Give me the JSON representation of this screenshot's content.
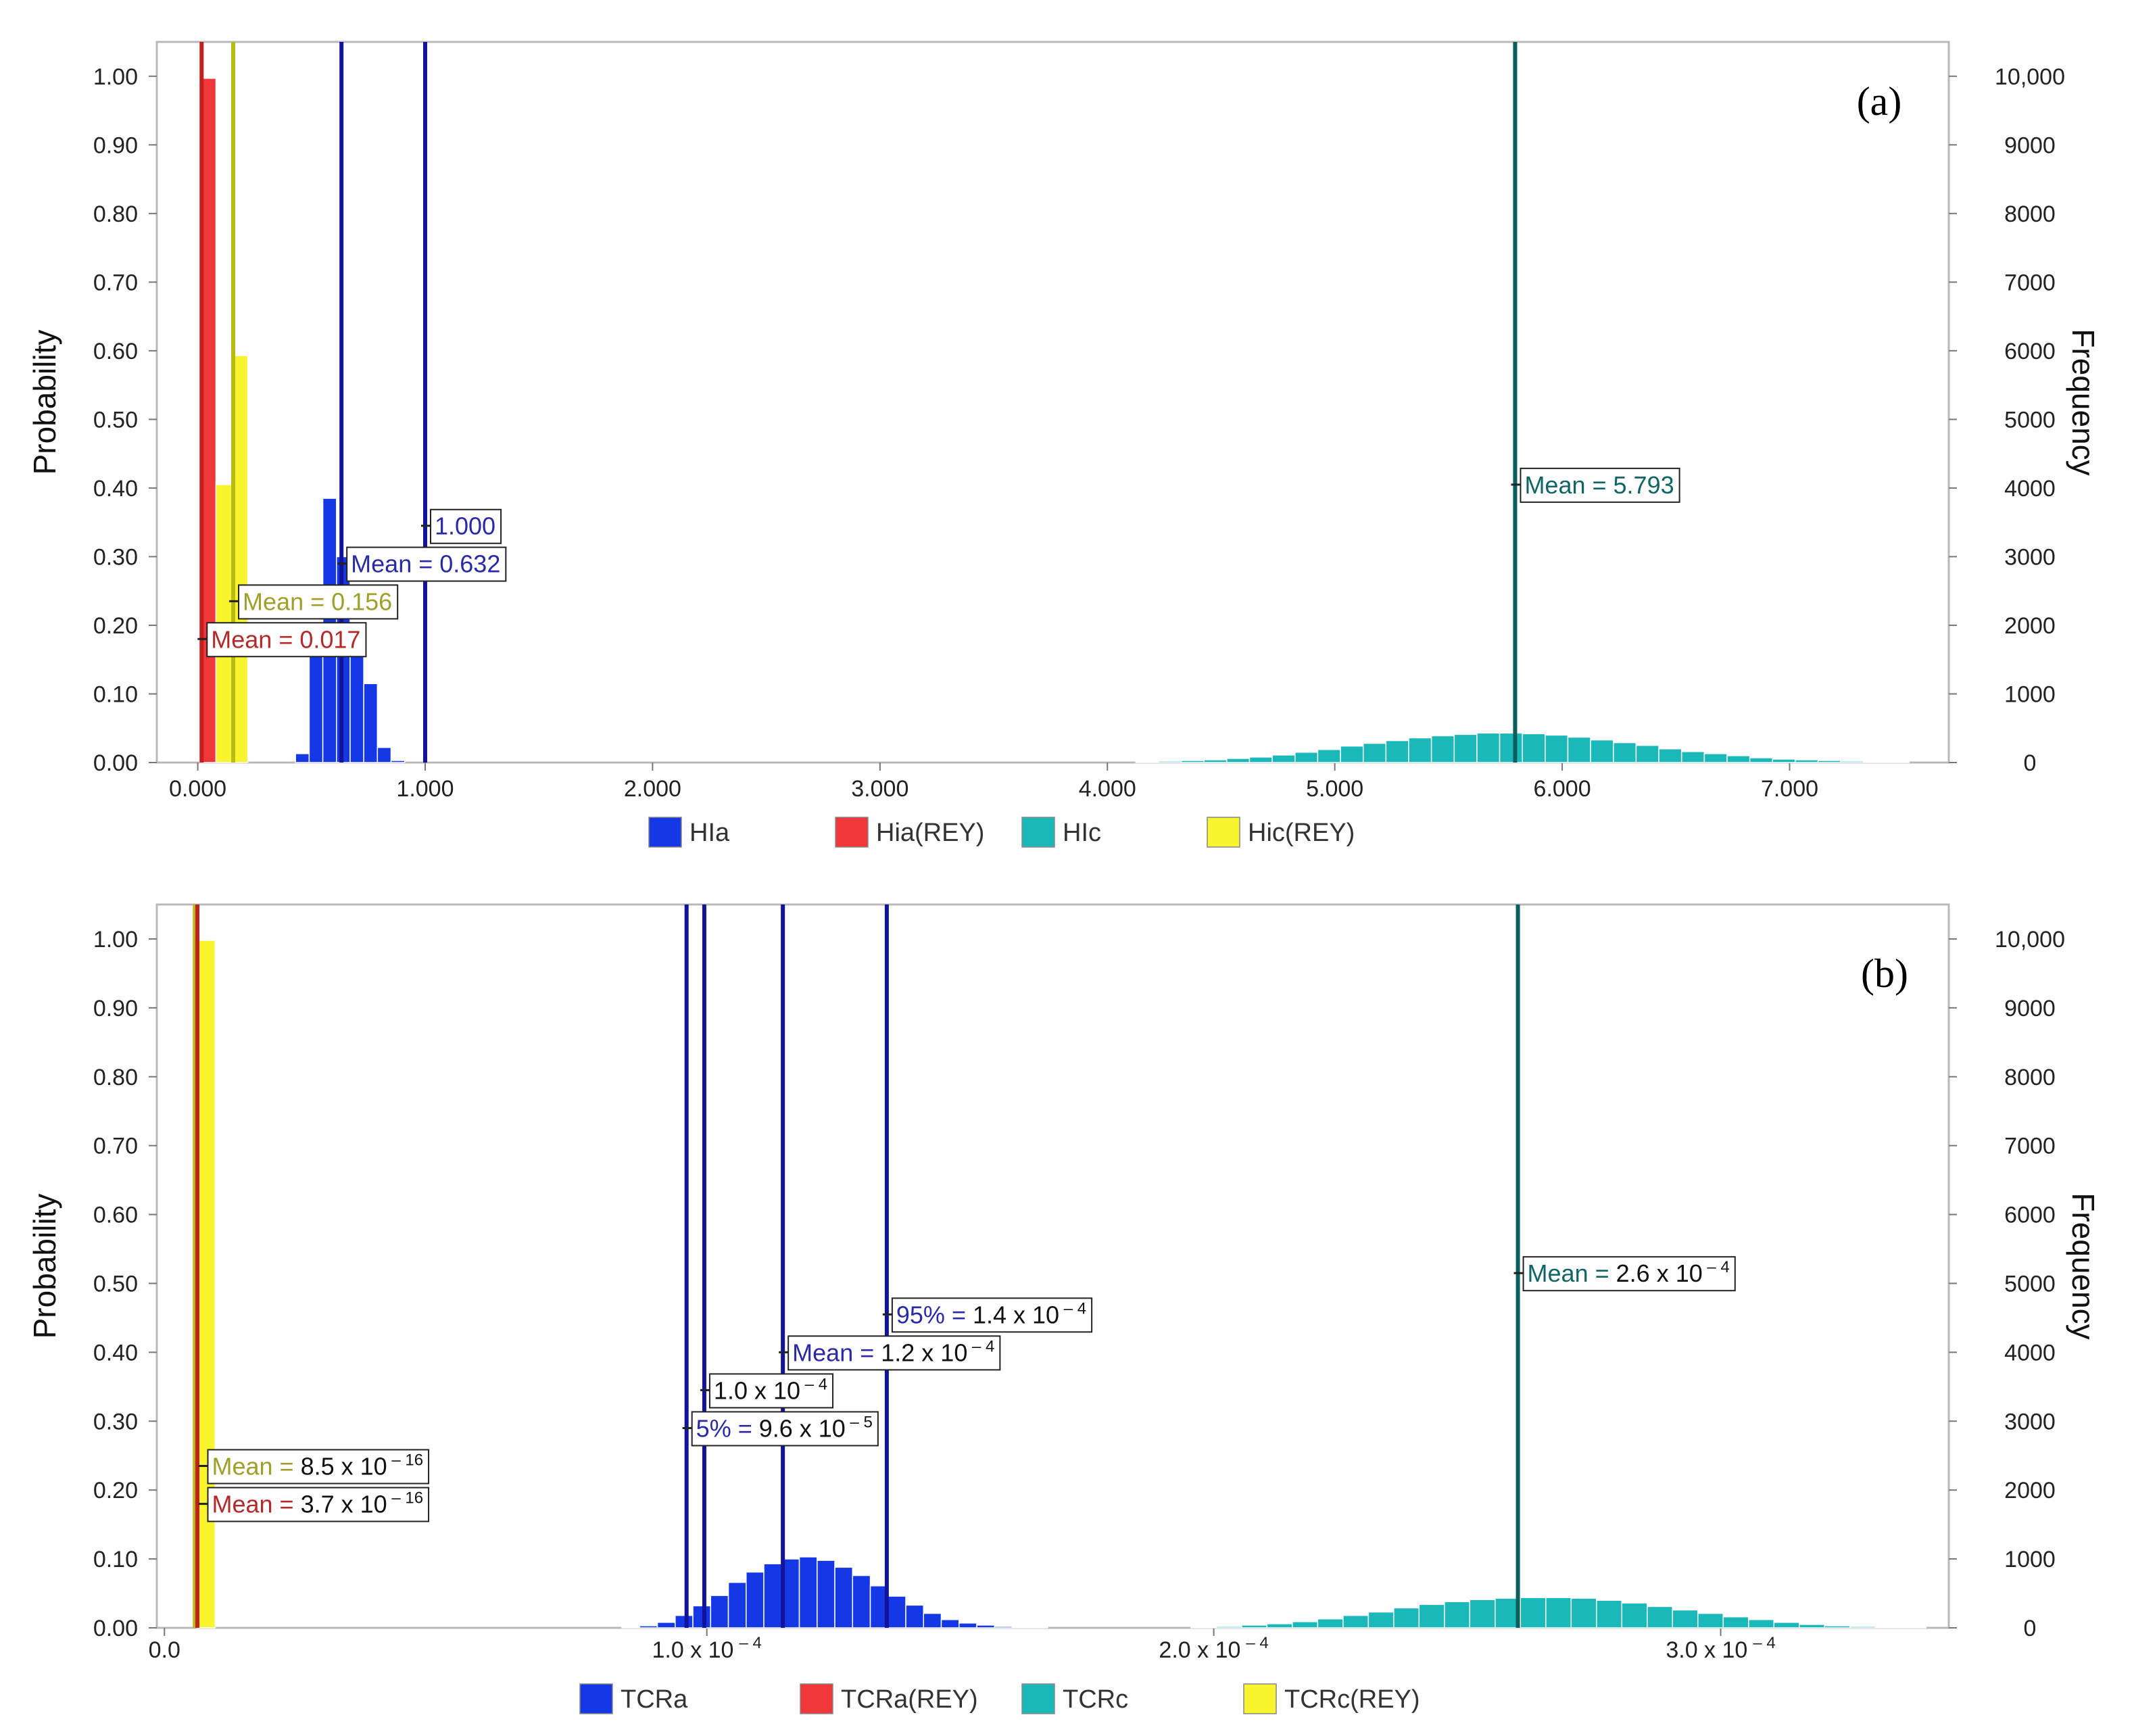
{
  "colors": {
    "blue": "#1538e6",
    "red": "#f0383a",
    "teal": "#1ab8b8",
    "yellow": "#f8f52e",
    "navy_line": "#12129a",
    "teal_line": "#0b5e5e",
    "yellow_line": "#b7bb14",
    "red_line": "#c21f1f",
    "annotation_navy": "#2a2aa8",
    "annotation_teal": "#0f6565",
    "annotation_olive": "#9ea02a",
    "annotation_red": "#b22a2a",
    "annotation_black": "#111111"
  },
  "chart_data": [
    {
      "panel": "(a)",
      "type": "bar",
      "ylabel_left": "Probability",
      "ylabel_right": "Frequency",
      "x_ticks": [
        "0.000",
        "1.000",
        "2.000",
        "3.000",
        "4.000",
        "5.000",
        "6.000",
        "7.000"
      ],
      "x_tick_values": [
        0,
        1,
        2,
        3,
        4,
        5,
        6,
        7
      ],
      "xlim": [
        -0.18,
        7.7
      ],
      "ylim_left": [
        0,
        1.05
      ],
      "y_ticks_left": [
        "0.00",
        "0.10",
        "0.20",
        "0.30",
        "0.40",
        "0.50",
        "0.60",
        "0.70",
        "0.80",
        "0.90",
        "1.00"
      ],
      "y_ticks_right": [
        "0",
        "1000",
        "2000",
        "3000",
        "4000",
        "5000",
        "6000",
        "7000",
        "8000",
        "9000",
        "10,000"
      ],
      "legend": [
        "HIa",
        "Hia(REY)",
        "HIc",
        "Hic(REY)"
      ],
      "series": [
        {
          "name": "HIa",
          "color": "blue",
          "bins": [
            [
              0.43,
              0.49,
              0.013
            ],
            [
              0.49,
              0.55,
              0.155
            ],
            [
              0.55,
              0.61,
              0.385
            ],
            [
              0.61,
              0.67,
              0.3
            ],
            [
              0.67,
              0.73,
              0.165
            ],
            [
              0.73,
              0.79,
              0.115
            ],
            [
              0.79,
              0.85,
              0.022
            ],
            [
              0.85,
              0.91,
              0.003
            ]
          ]
        },
        {
          "name": "Hia(REY)",
          "color": "red",
          "bins": [
            [
              0.01,
              0.08,
              0.997
            ]
          ]
        },
        {
          "name": "HIc",
          "color": "teal",
          "centers": [
            4.175,
            4.275,
            4.375,
            4.475,
            4.575,
            4.675,
            4.775,
            4.875,
            4.975,
            5.075,
            5.175,
            5.275,
            5.375,
            5.475,
            5.575,
            5.675,
            5.775,
            5.875,
            5.975,
            6.075,
            6.175,
            6.275,
            6.375,
            6.475,
            6.575,
            6.675,
            6.775,
            6.875,
            6.975,
            7.075,
            7.175,
            7.275,
            7.375,
            7.475
          ],
          "values": [
            0.001,
            0.002,
            0.003,
            0.004,
            0.006,
            0.008,
            0.011,
            0.015,
            0.019,
            0.024,
            0.028,
            0.032,
            0.036,
            0.039,
            0.041,
            0.043,
            0.043,
            0.042,
            0.04,
            0.037,
            0.033,
            0.029,
            0.025,
            0.02,
            0.016,
            0.013,
            0.01,
            0.007,
            0.005,
            0.004,
            0.003,
            0.002,
            0.001,
            0.001
          ]
        },
        {
          "name": "Hic(REY)",
          "color": "yellow",
          "bins": [
            [
              0.08,
              0.15,
              0.405
            ],
            [
              0.15,
              0.22,
              0.593
            ]
          ]
        }
      ],
      "vlines": [
        {
          "x": 0.017,
          "color": "red_line"
        },
        {
          "x": 0.156,
          "color": "yellow_line"
        },
        {
          "x": 0.632,
          "color": "navy_line"
        },
        {
          "x": 1.0,
          "color": "navy_line"
        },
        {
          "x": 5.793,
          "color": "teal_line"
        }
      ],
      "annotations": [
        {
          "anchor_x": 1.0,
          "anchor_y": 0.345,
          "color": "annotation_navy",
          "parts": [
            {
              "t": "1.000"
            }
          ]
        },
        {
          "anchor_x": 0.632,
          "anchor_y": 0.29,
          "color": "annotation_navy",
          "parts": [
            {
              "t": "Mean = 0.632"
            }
          ]
        },
        {
          "anchor_x": 0.156,
          "anchor_y": 0.235,
          "color": "annotation_olive",
          "parts": [
            {
              "t": "Mean = 0.156"
            }
          ]
        },
        {
          "anchor_x": 0.017,
          "anchor_y": 0.18,
          "color": "annotation_red",
          "parts": [
            {
              "t": "Mean = 0.017"
            }
          ]
        },
        {
          "anchor_x": 5.793,
          "anchor_y": 0.405,
          "color": "annotation_teal",
          "parts": [
            {
              "t": "Mean = 5.793"
            }
          ]
        }
      ]
    },
    {
      "panel": "(b)",
      "type": "bar",
      "ylabel_left": "Probability",
      "ylabel_right": "Frequency",
      "x_ticks": [
        {
          "base": "0.0",
          "exp": ""
        },
        {
          "base": "1.0 x 10",
          "exp": "– 4"
        },
        {
          "base": "2.0 x 10",
          "exp": "– 4"
        },
        {
          "base": "3.0 x 10",
          "exp": "– 4"
        }
      ],
      "x_tick_values": [
        -0.07,
        1.0,
        2.0,
        3.0
      ],
      "xlim": [
        -0.085,
        3.45
      ],
      "x_unit_note": "x values in units of 1e-4",
      "ylim_left": [
        0,
        1.05
      ],
      "y_ticks_left": [
        "0.00",
        "0.10",
        "0.20",
        "0.30",
        "0.40",
        "0.50",
        "0.60",
        "0.70",
        "0.80",
        "0.90",
        "1.00"
      ],
      "y_ticks_right": [
        "0",
        "1000",
        "2000",
        "3000",
        "4000",
        "5000",
        "6000",
        "7000",
        "8000",
        "9000",
        "10,000"
      ],
      "legend": [
        "TCRa",
        "TCRa(REY)",
        "TCRc",
        "TCRc(REY)"
      ],
      "series": [
        {
          "name": "TCRa",
          "color": "blue",
          "centers": [
            0.85,
            0.885,
            0.92,
            0.955,
            0.99,
            1.025,
            1.06,
            1.095,
            1.13,
            1.165,
            1.2,
            1.235,
            1.27,
            1.305,
            1.34,
            1.375,
            1.41,
            1.445,
            1.48,
            1.515,
            1.55,
            1.585,
            1.62,
            1.655
          ],
          "values": [
            0.001,
            0.003,
            0.008,
            0.018,
            0.032,
            0.047,
            0.066,
            0.081,
            0.093,
            0.1,
            0.103,
            0.098,
            0.088,
            0.076,
            0.061,
            0.046,
            0.033,
            0.021,
            0.012,
            0.007,
            0.004,
            0.002,
            0.001,
            0.001
          ]
        },
        {
          "name": "TCRa(REY)",
          "color": "red",
          "bins": [
            [
              -0.005,
              0.03,
              0.475
            ]
          ]
        },
        {
          "name": "TCRc",
          "color": "teal",
          "centers": [
            1.98,
            2.03,
            2.08,
            2.13,
            2.18,
            2.23,
            2.28,
            2.33,
            2.38,
            2.43,
            2.48,
            2.53,
            2.58,
            2.63,
            2.68,
            2.73,
            2.78,
            2.83,
            2.88,
            2.93,
            2.98,
            3.03,
            3.08,
            3.13,
            3.18,
            3.23,
            3.28,
            3.33,
            3.38
          ],
          "values": [
            0.001,
            0.002,
            0.004,
            0.006,
            0.009,
            0.013,
            0.018,
            0.023,
            0.029,
            0.034,
            0.038,
            0.041,
            0.043,
            0.044,
            0.044,
            0.043,
            0.04,
            0.036,
            0.031,
            0.026,
            0.021,
            0.016,
            0.012,
            0.008,
            0.005,
            0.003,
            0.002,
            0.001,
            0.001
          ]
        },
        {
          "name": "TCRc(REY)",
          "color": "yellow",
          "bins": [
            [
              -0.005,
              0.03,
              0.998
            ]
          ]
        }
      ],
      "vlines": [
        {
          "x": -0.01,
          "color": "yellow_line"
        },
        {
          "x": -0.005,
          "color": "red_line"
        },
        {
          "x": 0.96,
          "color": "navy_line"
        },
        {
          "x": 0.995,
          "color": "navy_line"
        },
        {
          "x": 1.15,
          "color": "navy_line"
        },
        {
          "x": 1.355,
          "color": "navy_line"
        },
        {
          "x": 2.6,
          "color": "teal_line"
        }
      ],
      "annotations": [
        {
          "anchor_x": 1.355,
          "anchor_y": 0.455,
          "color": "annotation_navy",
          "parts": [
            {
              "t": "95% = ",
              "c": "annotation_navy"
            },
            {
              "t": "1.4 x 10",
              "c": "annotation_black"
            },
            {
              "t": " – 4",
              "c": "annotation_black",
              "sup": true
            }
          ]
        },
        {
          "anchor_x": 1.15,
          "anchor_y": 0.4,
          "color": "annotation_navy",
          "parts": [
            {
              "t": "Mean = ",
              "c": "annotation_navy"
            },
            {
              "t": "1.2 x 10",
              "c": "annotation_black"
            },
            {
              "t": " – 4",
              "c": "annotation_black",
              "sup": true
            }
          ]
        },
        {
          "anchor_x": 0.995,
          "anchor_y": 0.345,
          "color": "annotation_black",
          "parts": [
            {
              "t": "1.0 x 10",
              "c": "annotation_black"
            },
            {
              "t": " – 4",
              "c": "annotation_black",
              "sup": true
            }
          ]
        },
        {
          "anchor_x": 0.96,
          "anchor_y": 0.29,
          "color": "annotation_navy",
          "parts": [
            {
              "t": "5% = ",
              "c": "annotation_navy"
            },
            {
              "t": "9.6 x 10",
              "c": "annotation_black"
            },
            {
              "t": " – 5",
              "c": "annotation_black",
              "sup": true
            }
          ]
        },
        {
          "anchor_x": 0.005,
          "anchor_y": 0.235,
          "color": "annotation_olive",
          "parts": [
            {
              "t": "Mean = ",
              "c": "annotation_olive"
            },
            {
              "t": "8.5 x 10",
              "c": "annotation_black"
            },
            {
              "t": " – 16",
              "c": "annotation_black",
              "sup": true
            }
          ]
        },
        {
          "anchor_x": 0.005,
          "anchor_y": 0.18,
          "color": "annotation_red",
          "parts": [
            {
              "t": "Mean = ",
              "c": "annotation_red"
            },
            {
              "t": "3.7 x 10",
              "c": "annotation_black"
            },
            {
              "t": " – 16",
              "c": "annotation_black",
              "sup": true
            }
          ]
        },
        {
          "anchor_x": 2.6,
          "anchor_y": 0.515,
          "color": "annotation_teal",
          "parts": [
            {
              "t": "Mean = ",
              "c": "annotation_teal"
            },
            {
              "t": "2.6 x 10",
              "c": "annotation_black"
            },
            {
              "t": " – 4",
              "c": "annotation_black",
              "sup": true
            }
          ]
        }
      ]
    }
  ]
}
